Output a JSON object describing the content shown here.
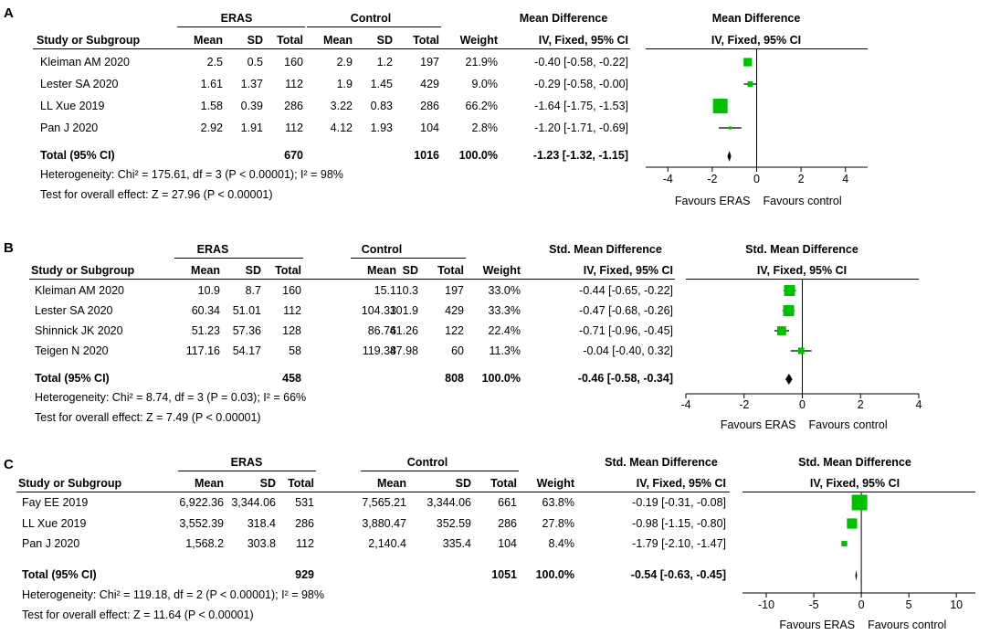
{
  "chart_data": [
    {
      "type": "forest",
      "panel_label": "A",
      "group1": "ERAS",
      "group2": "Control",
      "header": {
        "study": "Study or Subgroup",
        "mean": "Mean",
        "sd": "SD",
        "total": "Total",
        "weight": "Weight",
        "effect_title": "Mean Difference",
        "effect_method": "IV, Fixed, 95% CI"
      },
      "studies": [
        {
          "name": "Kleiman AM 2020",
          "m1": "2.5",
          "sd1": "0.5",
          "n1": "160",
          "m2": "2.9",
          "sd2": "1.2",
          "n2": "197",
          "weight": "21.9%",
          "ci_text": "-0.40 [-0.58, -0.22]",
          "est": -0.4,
          "lo": -0.58,
          "hi": -0.22,
          "w": 21.9
        },
        {
          "name": "Lester SA 2020",
          "m1": "1.61",
          "sd1": "1.37",
          "n1": "112",
          "m2": "1.9",
          "sd2": "1.45",
          "n2": "429",
          "weight": "9.0%",
          "ci_text": "-0.29 [-0.58, -0.00]",
          "est": -0.29,
          "lo": -0.58,
          "hi": -0.0,
          "w": 9.0
        },
        {
          "name": "LL Xue 2019",
          "m1": "1.58",
          "sd1": "0.39",
          "n1": "286",
          "m2": "3.22",
          "sd2": "0.83",
          "n2": "286",
          "weight": "66.2%",
          "ci_text": "-1.64 [-1.75, -1.53]",
          "est": -1.64,
          "lo": -1.75,
          "hi": -1.53,
          "w": 66.2
        },
        {
          "name": "Pan J 2020",
          "m1": "2.92",
          "sd1": "1.91",
          "n1": "112",
          "m2": "4.12",
          "sd2": "1.93",
          "n2": "104",
          "weight": "2.8%",
          "ci_text": "-1.20 [-1.71, -0.69]",
          "est": -1.2,
          "lo": -1.71,
          "hi": -0.69,
          "w": 2.8
        }
      ],
      "total": {
        "label": "Total (95% CI)",
        "n1": "670",
        "n2": "1016",
        "weight": "100.0%",
        "ci_text": "-1.23 [-1.32, -1.15]",
        "est": -1.23,
        "lo": -1.32,
        "hi": -1.15
      },
      "heterogeneity": "Heterogeneity: Chi² = 175.61, df = 3 (P < 0.00001); I² = 98%",
      "overall": "Test for overall effect: Z = 27.96 (P < 0.00001)",
      "axis": {
        "min": -5,
        "max": 5,
        "ticks": [
          -4,
          -2,
          0,
          2,
          4
        ],
        "tick_labels": [
          "-4",
          "-2",
          "0",
          "2",
          "4"
        ]
      },
      "favours_left": "Favours ERAS",
      "favours_right": "Favours control"
    },
    {
      "type": "forest",
      "panel_label": "B",
      "group1": "ERAS",
      "group2": "Control",
      "header": {
        "study": "Study or Subgroup",
        "mean": "Mean",
        "sd": "SD",
        "total": "Total",
        "weight": "Weight",
        "effect_title": "Std. Mean Difference",
        "effect_method": "IV, Fixed, 95% CI"
      },
      "studies": [
        {
          "name": "Kleiman AM 2020",
          "m1": "10.9",
          "sd1": "8.7",
          "n1": "160",
          "m2": "15.1",
          "sd2": "10.3",
          "n2": "197",
          "weight": "33.0%",
          "ci_text": "-0.44 [-0.65, -0.22]",
          "est": -0.44,
          "lo": -0.65,
          "hi": -0.22,
          "w": 33.0
        },
        {
          "name": "Lester SA 2020",
          "m1": "60.34",
          "sd1": "51.01",
          "n1": "112",
          "m2": "104.33",
          "sd2": "101.9",
          "n2": "429",
          "weight": "33.3%",
          "ci_text": "-0.47 [-0.68, -0.26]",
          "est": -0.47,
          "lo": -0.68,
          "hi": -0.26,
          "w": 33.3
        },
        {
          "name": "Shinnick JK 2020",
          "m1": "51.23",
          "sd1": "57.36",
          "n1": "128",
          "m2": "86.76",
          "sd2": "41.26",
          "n2": "122",
          "weight": "22.4%",
          "ci_text": "-0.71 [-0.96, -0.45]",
          "est": -0.71,
          "lo": -0.96,
          "hi": -0.45,
          "w": 22.4
        },
        {
          "name": "Teigen N 2020",
          "m1": "117.16",
          "sd1": "54.17",
          "n1": "58",
          "m2": "119.38",
          "sd2": "47.98",
          "n2": "60",
          "weight": "11.3%",
          "ci_text": "-0.04 [-0.40, 0.32]",
          "est": -0.04,
          "lo": -0.4,
          "hi": 0.32,
          "w": 11.3
        }
      ],
      "total": {
        "label": "Total (95% CI)",
        "n1": "458",
        "n2": "808",
        "weight": "100.0%",
        "ci_text": "-0.46 [-0.58, -0.34]",
        "est": -0.46,
        "lo": -0.58,
        "hi": -0.34
      },
      "heterogeneity": "Heterogeneity: Chi² = 8.74, df = 3 (P = 0.03); I² = 66%",
      "overall": "Test for overall effect: Z = 7.49 (P < 0.00001)",
      "axis": {
        "min": -4,
        "max": 4,
        "ticks": [
          -4,
          -2,
          0,
          2,
          4
        ],
        "tick_labels": [
          "-4",
          "-2",
          "0",
          "2",
          "4"
        ]
      },
      "favours_left": "Favours ERAS",
      "favours_right": "Favours control"
    },
    {
      "type": "forest",
      "panel_label": "C",
      "group1": "ERAS",
      "group2": "Control",
      "header": {
        "study": "Study or Subgroup",
        "mean": "Mean",
        "sd": "SD",
        "total": "Total",
        "weight": "Weight",
        "effect_title": "Std. Mean Difference",
        "effect_method": "IV, Fixed, 95% CI"
      },
      "studies": [
        {
          "name": "Fay EE 2019",
          "m1": "6,922.36",
          "sd1": "3,344.06",
          "n1": "531",
          "m2": "7,565.21",
          "sd2": "3,344.06",
          "n2": "661",
          "weight": "63.8%",
          "ci_text": "-0.19 [-0.31, -0.08]",
          "est": -0.19,
          "lo": -0.31,
          "hi": -0.08,
          "w": 63.8
        },
        {
          "name": "LL Xue 2019",
          "m1": "3,552.39",
          "sd1": "318.4",
          "n1": "286",
          "m2": "3,880.47",
          "sd2": "352.59",
          "n2": "286",
          "weight": "27.8%",
          "ci_text": "-0.98 [-1.15, -0.80]",
          "est": -0.98,
          "lo": -1.15,
          "hi": -0.8,
          "w": 27.8
        },
        {
          "name": "Pan J 2020",
          "m1": "1,568.2",
          "sd1": "303.8",
          "n1": "112",
          "m2": "2,140.4",
          "sd2": "335.4",
          "n2": "104",
          "weight": "8.4%",
          "ci_text": "-1.79 [-2.10, -1.47]",
          "est": -1.79,
          "lo": -2.1,
          "hi": -1.47,
          "w": 8.4
        }
      ],
      "total": {
        "label": "Total (95% CI)",
        "n1": "929",
        "n2": "1051",
        "weight": "100.0%",
        "ci_text": "-0.54 [-0.63, -0.45]",
        "est": -0.54,
        "lo": -0.63,
        "hi": -0.45
      },
      "heterogeneity": "Heterogeneity: Chi² = 119.18, df = 2 (P < 0.00001); I² = 98%",
      "overall": "Test for overall effect: Z = 11.64 (P < 0.00001)",
      "axis": {
        "min": -12.5,
        "max": 12,
        "ticks": [
          -10,
          -5,
          0,
          5,
          10
        ],
        "tick_labels": [
          "-10",
          "-5",
          "0",
          "5",
          "10"
        ]
      },
      "favours_left": "Favours ERAS",
      "favours_right": "Favours control"
    }
  ],
  "colors": {
    "marker": "#00c000",
    "line": "#000000"
  }
}
